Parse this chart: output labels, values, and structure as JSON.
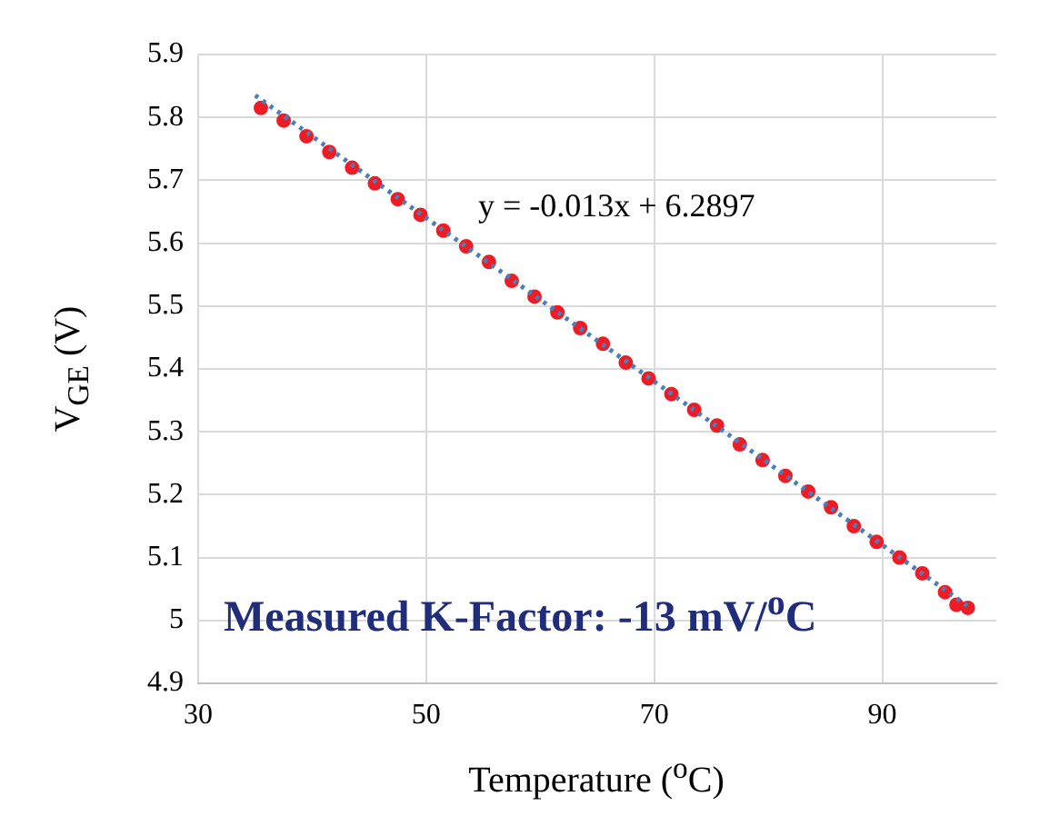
{
  "chart_data": {
    "type": "scatter",
    "xlabel": "Temperature ($^{o}$C)",
    "ylabel": "V$_{GE}$ (V)",
    "xlim": [
      30,
      100
    ],
    "xticks": [
      30,
      50,
      70,
      90
    ],
    "ylim": [
      4.9,
      5.9
    ],
    "yticks": [
      4.9,
      5,
      5.1,
      5.2,
      5.3,
      5.4,
      5.5,
      5.6,
      5.7,
      5.8,
      5.9
    ],
    "grid": true,
    "legend": false,
    "series": [
      {
        "color": "#ee1c25",
        "marker": "circle",
        "x": [
          35.5,
          37.5,
          39.5,
          41.5,
          43.5,
          45.5,
          47.5,
          49.5,
          51.5,
          53.5,
          55.5,
          57.5,
          59.5,
          61.5,
          63.5,
          65.5,
          67.5,
          69.5,
          71.5,
          73.5,
          75.5,
          77.5,
          79.5,
          81.5,
          83.5,
          85.5,
          87.5,
          89.5,
          91.5,
          93.5,
          95.5,
          96.5,
          97.5
        ],
        "values": [
          5.815,
          5.795,
          5.77,
          5.745,
          5.72,
          5.695,
          5.67,
          5.645,
          5.62,
          5.595,
          5.57,
          5.54,
          5.515,
          5.49,
          5.465,
          5.44,
          5.41,
          5.385,
          5.36,
          5.335,
          5.31,
          5.28,
          5.255,
          5.23,
          5.205,
          5.18,
          5.15,
          5.125,
          5.1,
          5.075,
          5.045,
          5.025,
          5.02
        ]
      },
      {
        "type": "line",
        "color": "#4a7ebb",
        "line_style": "dotted",
        "x": [
          35,
          97.7
        ],
        "values": [
          5.835,
          5.02
        ]
      }
    ],
    "annotations": [
      "y = -0.013x + 6.2897",
      "Measured K-Factor: -13 mV/$^{o}$C"
    ]
  }
}
